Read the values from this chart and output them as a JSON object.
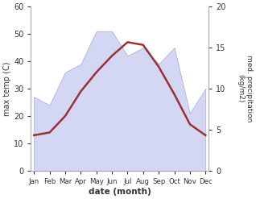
{
  "months": [
    "Jan",
    "Feb",
    "Mar",
    "Apr",
    "May",
    "Jun",
    "Jul",
    "Aug",
    "Sep",
    "Oct",
    "Nov",
    "Dec"
  ],
  "month_x": [
    0,
    1,
    2,
    3,
    4,
    5,
    6,
    7,
    8,
    9,
    10,
    11
  ],
  "temp_max": [
    13,
    14,
    20,
    29,
    36,
    42,
    47,
    46,
    38,
    28,
    17,
    13
  ],
  "precipitation": [
    9,
    8,
    12,
    13,
    17,
    17,
    14,
    15,
    13,
    15,
    7,
    10
  ],
  "temp_ylim": [
    0,
    60
  ],
  "precip_ylim": [
    0,
    20
  ],
  "temp_color": "#993333",
  "precip_fill_color": "#c5caf0",
  "precip_edge_color": "#9090cc",
  "xlabel": "date (month)",
  "ylabel_left": "max temp (C)",
  "ylabel_right": "med. precipitation\n(kg/m2)",
  "bg_color": "#ffffff",
  "linewidth": 1.8,
  "fill_alpha": 0.75,
  "yticks_left": [
    0,
    10,
    20,
    30,
    40,
    50,
    60
  ],
  "yticks_right": [
    0,
    5,
    10,
    15,
    20
  ]
}
